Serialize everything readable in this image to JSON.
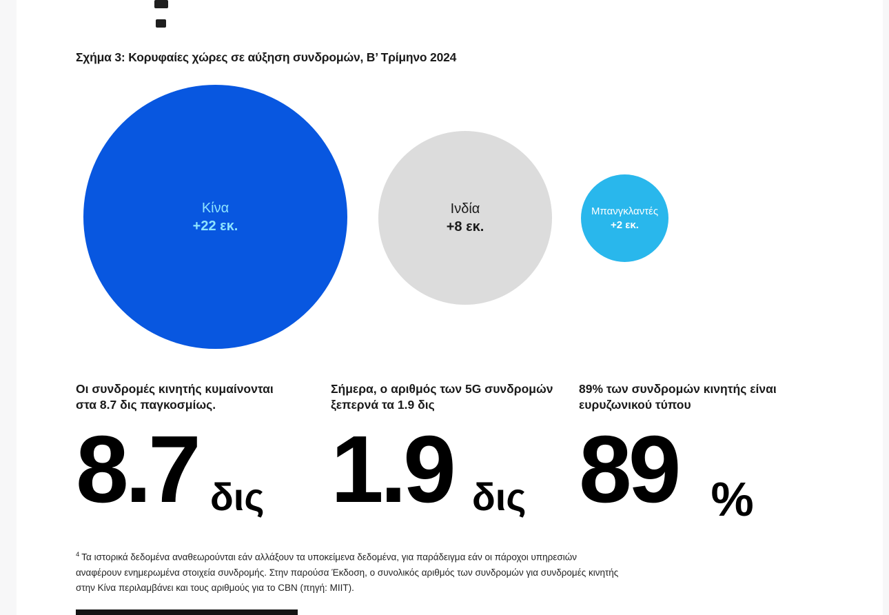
{
  "figure": {
    "title": "Σχήμα 3: Κορυφαίες χώρες σε αύξηση συνδρομών, Β’ Τρίμηνο 2024"
  },
  "chart_data": {
    "type": "bubble",
    "title": "Σχήμα 3: Κορυφαίες χώρες σε αύξηση συνδρομών, Β’ Τρίμηνο 2024",
    "unit": "εκ.",
    "bubbles": [
      {
        "label": "Κίνα",
        "value": 22,
        "value_label": "+22 εκ.",
        "color": "#0857e0",
        "text_color": "#8ee4ff"
      },
      {
        "label": "Ινδία",
        "value": 8,
        "value_label": "+8 εκ.",
        "color": "#dcdcdc",
        "text_color": "#1a1a1a"
      },
      {
        "label": "Μπανγκλαντές",
        "value": 2,
        "value_label": "+2 εκ.",
        "color": "#29b7ec",
        "text_color": "#ffffff"
      }
    ]
  },
  "stats": [
    {
      "line1": "Οι συνδρομές κινητής κυμαίνονται",
      "line2": "στα 8.7 δις παγκοσμίως.",
      "value": "8.7",
      "unit": "δις"
    },
    {
      "line1": "Σήμερα, ο αριθμός των 5G συνδρομών",
      "line2": "ξεπερνά τα 1.9 δις",
      "value": "1.9",
      "unit": "δις"
    },
    {
      "line1": "89% των συνδρομών κινητής είναι",
      "line2": "ευρυζωνικού τύπου",
      "value": "89",
      "unit": "%"
    }
  ],
  "footnote": {
    "marker": "4",
    "line1": "Τα ιστορικά δεδομένα αναθεωρούνται εάν αλλάξουν τα υποκείμενα δεδομένα, για παράδειγμα εάν οι πάροχοι υπηρεσιών",
    "line2": "αναφέρουν ενημερωμένα στοιχεία συνδρομής. Στην παρούσα Έκδοση, ο συνολικός αριθμός των συνδρομών για συνδρομές κινητής",
    "line3": "στην Κίνα περιλαμβάνει και τους αριθμούς για το CBN (πηγή: MIIT)."
  },
  "colors": {
    "page_background": "#ffffff",
    "gutter": "#f7f7f8",
    "china_bubble": "#0857e0",
    "china_text": "#8ee4ff",
    "india_bubble": "#dcdcdc",
    "bangladesh_bubble": "#29b7ec",
    "stat_number": "#000000"
  }
}
